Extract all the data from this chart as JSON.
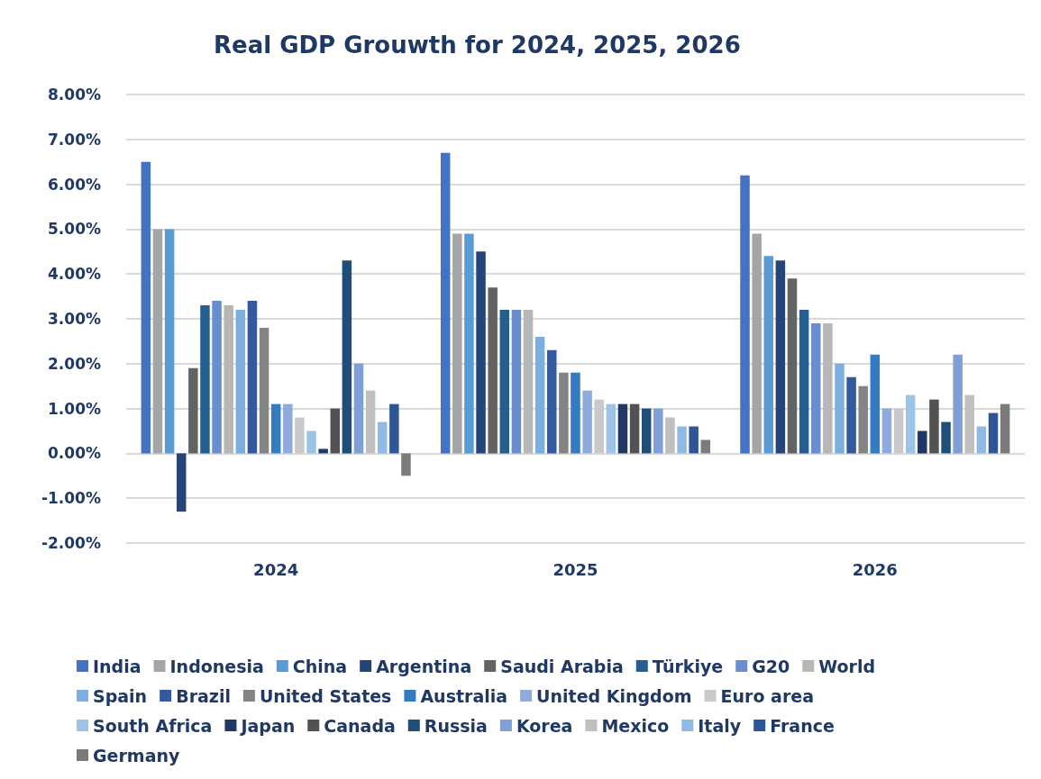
{
  "chart_data": {
    "type": "bar",
    "title": "Real GDP Grouwth for 2024, 2025, 2026",
    "categories": [
      "2024",
      "2025",
      "2026"
    ],
    "ylim": [
      -2,
      8
    ],
    "yticks": [
      {
        "value": -2,
        "label": "-2.00%"
      },
      {
        "value": -1,
        "label": "-1.00%"
      },
      {
        "value": 0,
        "label": "0.00%"
      },
      {
        "value": 1,
        "label": "1.00%"
      },
      {
        "value": 2,
        "label": "2.00%"
      },
      {
        "value": 3,
        "label": "3.00%"
      },
      {
        "value": 4,
        "label": "4.00%"
      },
      {
        "value": 5,
        "label": "5.00%"
      },
      {
        "value": 6,
        "label": "6.00%"
      },
      {
        "value": 7,
        "label": "7.00%"
      },
      {
        "value": 8,
        "label": "8.00%"
      }
    ],
    "grid": "y",
    "legend": "bottom",
    "series": [
      {
        "name": "India",
        "color": "#4472c4",
        "values": [
          6.5,
          6.7,
          6.2
        ]
      },
      {
        "name": "Indonesia",
        "color": "#a5a5a5",
        "values": [
          5.0,
          4.9,
          4.9
        ]
      },
      {
        "name": "China",
        "color": "#5b9bd5",
        "values": [
          5.0,
          4.9,
          4.4
        ]
      },
      {
        "name": "Argentina",
        "color": "#264478",
        "values": [
          -1.3,
          4.5,
          4.3
        ]
      },
      {
        "name": "Saudi Arabia",
        "color": "#636363",
        "values": [
          1.9,
          3.7,
          3.9
        ]
      },
      {
        "name": "Türkiye",
        "color": "#255e91",
        "values": [
          3.3,
          3.2,
          3.2
        ]
      },
      {
        "name": "G20",
        "color": "#698ed0",
        "values": [
          3.4,
          3.2,
          2.9
        ]
      },
      {
        "name": "World",
        "color": "#b7b7b7",
        "values": [
          3.3,
          3.2,
          2.9
        ]
      },
      {
        "name": "Spain",
        "color": "#7cafdd",
        "values": [
          3.2,
          2.6,
          2.0
        ]
      },
      {
        "name": "Brazil",
        "color": "#335aa1",
        "values": [
          3.4,
          2.3,
          1.7
        ]
      },
      {
        "name": "United States",
        "color": "#848484",
        "values": [
          2.8,
          1.8,
          1.5
        ]
      },
      {
        "name": "Australia",
        "color": "#327dc2",
        "values": [
          1.1,
          1.8,
          2.2
        ]
      },
      {
        "name": "United Kingdom",
        "color": "#8faadc",
        "values": [
          1.1,
          1.4,
          1.0
        ]
      },
      {
        "name": "Euro area",
        "color": "#c9c9c9",
        "values": [
          0.8,
          1.2,
          1.0
        ]
      },
      {
        "name": "South Africa",
        "color": "#9dc3e6",
        "values": [
          0.5,
          1.1,
          1.3
        ]
      },
      {
        "name": "Japan",
        "color": "#203864",
        "values": [
          0.1,
          1.1,
          0.5
        ]
      },
      {
        "name": "Canada",
        "color": "#525252",
        "values": [
          1.0,
          1.1,
          1.2
        ]
      },
      {
        "name": "Russia",
        "color": "#1f4e79",
        "values": [
          4.3,
          1.0,
          0.7
        ]
      },
      {
        "name": "Korea",
        "color": "#7f9fd6",
        "values": [
          2.0,
          1.0,
          2.2
        ]
      },
      {
        "name": "Mexico",
        "color": "#bfbfbf",
        "values": [
          1.4,
          0.8,
          1.3
        ]
      },
      {
        "name": "Italy",
        "color": "#8fbae3",
        "values": [
          0.7,
          0.6,
          0.6
        ]
      },
      {
        "name": "France",
        "color": "#2f5597",
        "values": [
          1.1,
          0.6,
          0.9
        ]
      },
      {
        "name": "Germany",
        "color": "#7b7b7b",
        "values": [
          -0.5,
          0.3,
          1.1
        ]
      }
    ]
  }
}
